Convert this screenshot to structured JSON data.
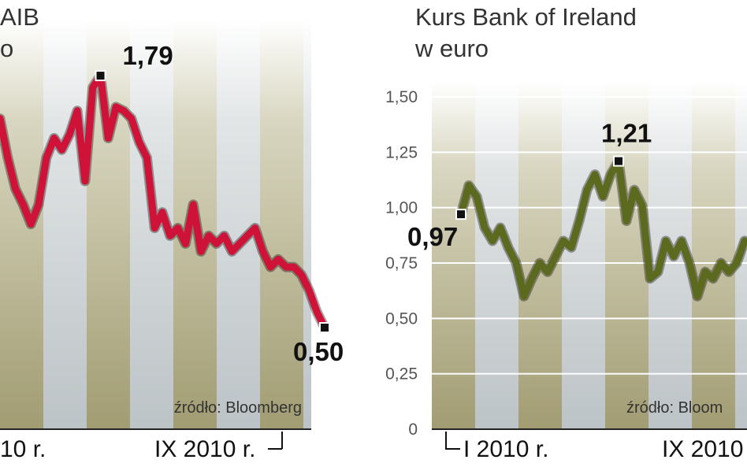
{
  "chart_data": [
    {
      "type": "line",
      "title": [
        "AIB",
        "o"
      ],
      "series": [
        {
          "name": "AIB",
          "color": "#cf1237",
          "values": [
            1.57,
            1.37,
            1.21,
            1.13,
            1.03,
            1.13,
            1.37,
            1.47,
            1.41,
            1.49,
            1.61,
            1.25,
            1.73,
            1.79,
            1.47,
            1.63,
            1.61,
            1.57,
            1.45,
            1.37,
            1.01,
            1.09,
            0.97,
            1.01,
            0.93,
            1.13,
            0.89,
            0.97,
            0.93,
            0.97,
            0.89,
            0.93,
            0.97,
            1.01,
            0.89,
            0.81,
            0.85,
            0.81,
            0.81,
            0.77,
            0.69,
            0.58,
            0.5
          ]
        }
      ],
      "ylim": [
        0,
        2.0
      ],
      "annotations": [
        {
          "label": "1,79",
          "value": 1.79
        },
        {
          "label": "0,50",
          "value": 0.5
        }
      ],
      "x_labels": [
        "10 r.",
        "IX 2010 r."
      ],
      "source": "źródło: Bloomberg"
    },
    {
      "type": "line",
      "title": [
        "Kurs Bank of Ireland",
        "w euro"
      ],
      "series": [
        {
          "name": "Bank of Ireland",
          "color": "#5b6a1e",
          "values": [
            0.97,
            1.1,
            1.05,
            0.91,
            0.85,
            0.91,
            0.82,
            0.75,
            0.6,
            0.68,
            0.75,
            0.71,
            0.78,
            0.85,
            0.82,
            0.94,
            1.08,
            1.15,
            1.05,
            1.15,
            1.21,
            0.94,
            1.08,
            1.01,
            0.68,
            0.71,
            0.85,
            0.78,
            0.85,
            0.75,
            0.6,
            0.71,
            0.68,
            0.75,
            0.71,
            0.75,
            0.85
          ]
        }
      ],
      "ylim": [
        0,
        1.5
      ],
      "yticks": [
        0,
        {
          "value": 0.25,
          "label": "0,25"
        },
        {
          "value": 0.5,
          "label": "0,50"
        },
        {
          "value": 0.75,
          "label": "0,75"
        },
        {
          "value": 1.0,
          "label": "1,00"
        },
        {
          "value": 1.25,
          "label": "1,25"
        },
        {
          "value": 1.5,
          "label": "1,50"
        }
      ],
      "annotations": [
        {
          "label": "0,97",
          "value": 0.97
        },
        {
          "label": "1,21",
          "value": 1.21
        }
      ],
      "x_labels": [
        "I 2010 r.",
        "IX 2010"
      ],
      "source": "źródło: Bloom"
    }
  ]
}
